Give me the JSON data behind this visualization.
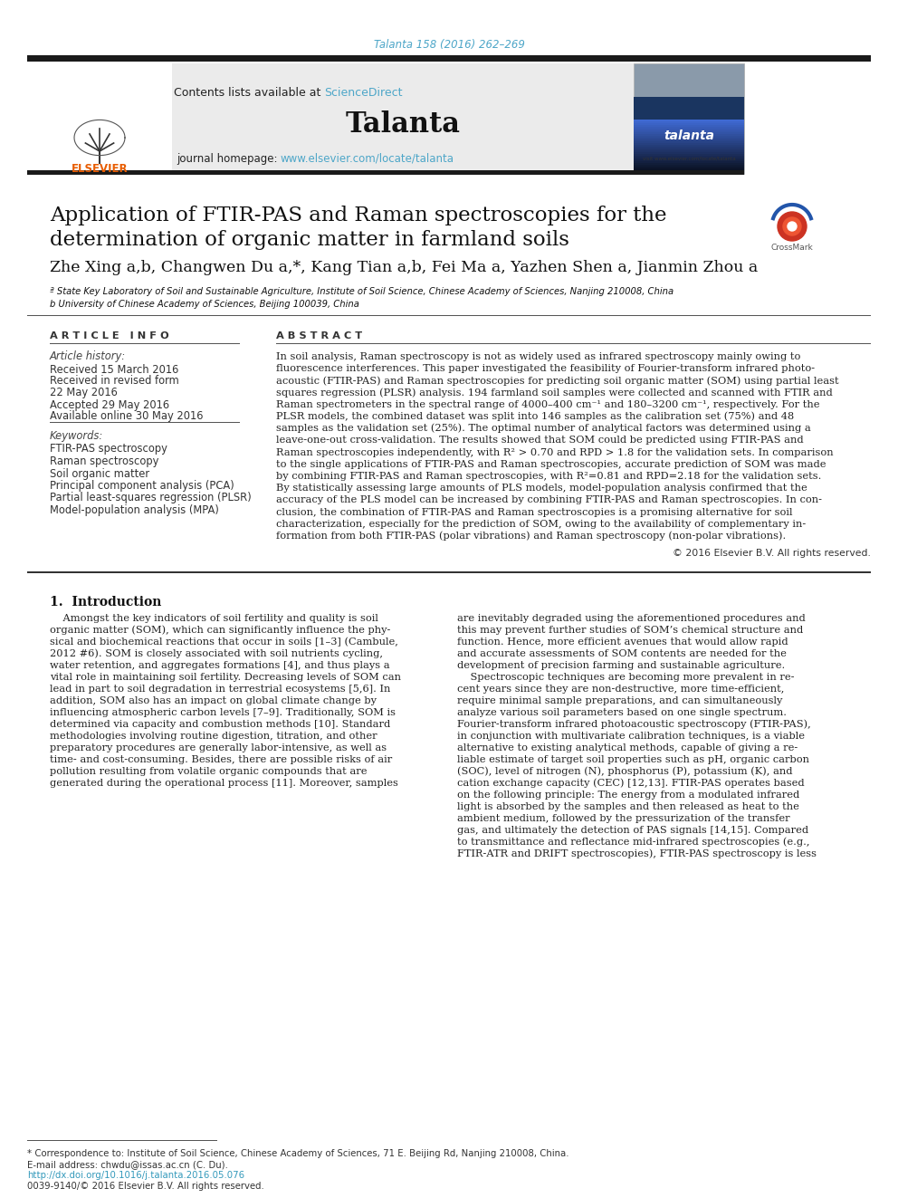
{
  "page_bg": "#ffffff",
  "top_citation": "Talanta 158 (2016) 262–269",
  "top_citation_color": "#4da6c8",
  "journal_header_bg": "#ebebeb",
  "contents_text": "Contents lists available at ",
  "sciencedirect_text": "ScienceDirect",
  "sciencedirect_color": "#4da6c8",
  "journal_name": "Talanta",
  "journal_homepage_text": "journal homepage: ",
  "journal_url": "www.elsevier.com/locate/talanta",
  "journal_url_color": "#4da6c8",
  "title_line1": "Application of FTIR-PAS and Raman spectroscopies for the",
  "title_line2": "determination of organic matter in farmland soils",
  "author_text": "Zhe Xing a,b, Changwen Du a,*, Kang Tian a,b, Fei Ma a, Yazhen Shen a, Jianmin Zhou a",
  "affil1": "ª State Key Laboratory of Soil and Sustainable Agriculture, Institute of Soil Science, Chinese Academy of Sciences, Nanjing 210008, China",
  "affil2": "b University of Chinese Academy of Sciences, Beijing 100039, China",
  "article_info_header": "A R T I C L E   I N F O",
  "abstract_header": "A B S T R A C T",
  "article_history_label": "Article history:",
  "received": "Received 15 March 2016",
  "received_revised": "Received in revised form",
  "revised_date": "22 May 2016",
  "accepted": "Accepted 29 May 2016",
  "available": "Available online 30 May 2016",
  "keywords_label": "Keywords:",
  "keywords": [
    "FTIR-PAS spectroscopy",
    "Raman spectroscopy",
    "Soil organic matter",
    "Principal component analysis (PCA)",
    "Partial least-squares regression (PLSR)",
    "Model-population analysis (MPA)"
  ],
  "abstract_lines": [
    "In soil analysis, Raman spectroscopy is not as widely used as infrared spectroscopy mainly owing to",
    "fluorescence interferences. This paper investigated the feasibility of Fourier-transform infrared photo-",
    "acoustic (FTIR-PAS) and Raman spectroscopies for predicting soil organic matter (SOM) using partial least",
    "squares regression (PLSR) analysis. 194 farmland soil samples were collected and scanned with FTIR and",
    "Raman spectrometers in the spectral range of 4000–400 cm⁻¹ and 180–3200 cm⁻¹, respectively. For the",
    "PLSR models, the combined dataset was split into 146 samples as the calibration set (75%) and 48",
    "samples as the validation set (25%). The optimal number of analytical factors was determined using a",
    "leave-one-out cross-validation. The results showed that SOM could be predicted using FTIR-PAS and",
    "Raman spectroscopies independently, with R² > 0.70 and RPD > 1.8 for the validation sets. In comparison",
    "to the single applications of FTIR-PAS and Raman spectroscopies, accurate prediction of SOM was made",
    "by combining FTIR-PAS and Raman spectroscopies, with R²=0.81 and RPD=2.18 for the validation sets.",
    "By statistically assessing large amounts of PLS models, model-population analysis confirmed that the",
    "accuracy of the PLS model can be increased by combining FTIR-PAS and Raman spectroscopies. In con-",
    "clusion, the combination of FTIR-PAS and Raman spectroscopies is a promising alternative for soil",
    "characterization, especially for the prediction of SOM, owing to the availability of complementary in-",
    "formation from both FTIR-PAS (polar vibrations) and Raman spectroscopy (non-polar vibrations)."
  ],
  "copyright": "© 2016 Elsevier B.V. All rights reserved.",
  "intro_header": "1.  Introduction",
  "intro_col1_lines": [
    "    Amongst the key indicators of soil fertility and quality is soil",
    "organic matter (SOM), which can significantly influence the phy-",
    "sical and biochemical reactions that occur in soils [1–3] (Cambule,",
    "2012 #6). SOM is closely associated with soil nutrients cycling,",
    "water retention, and aggregates formations [4], and thus plays a",
    "vital role in maintaining soil fertility. Decreasing levels of SOM can",
    "lead in part to soil degradation in terrestrial ecosystems [5,6]. In",
    "addition, SOM also has an impact on global climate change by",
    "influencing atmospheric carbon levels [7–9]. Traditionally, SOM is",
    "determined via capacity and combustion methods [10]. Standard",
    "methodologies involving routine digestion, titration, and other",
    "preparatory procedures are generally labor-intensive, as well as",
    "time- and cost-consuming. Besides, there are possible risks of air",
    "pollution resulting from volatile organic compounds that are",
    "generated during the operational process [11]. Moreover, samples"
  ],
  "intro_col2_lines": [
    "are inevitably degraded using the aforementioned procedures and",
    "this may prevent further studies of SOM’s chemical structure and",
    "function. Hence, more efficient avenues that would allow rapid",
    "and accurate assessments of SOM contents are needed for the",
    "development of precision farming and sustainable agriculture.",
    "    Spectroscopic techniques are becoming more prevalent in re-",
    "cent years since they are non-destructive, more time-efficient,",
    "require minimal sample preparations, and can simultaneously",
    "analyze various soil parameters based on one single spectrum.",
    "Fourier-transform infrared photoacoustic spectroscopy (FTIR-PAS),",
    "in conjunction with multivariate calibration techniques, is a viable",
    "alternative to existing analytical methods, capable of giving a re-",
    "liable estimate of target soil properties such as pH, organic carbon",
    "(SOC), level of nitrogen (N), phosphorus (P), potassium (K), and",
    "cation exchange capacity (CEC) [12,13]. FTIR-PAS operates based",
    "on the following principle: The energy from a modulated infrared",
    "light is absorbed by the samples and then released as heat to the",
    "ambient medium, followed by the pressurization of the transfer",
    "gas, and ultimately the detection of PAS signals [14,15]. Compared",
    "to transmittance and reflectance mid-infrared spectroscopies (e.g.,",
    "FTIR-ATR and DRIFT spectroscopies), FTIR-PAS spectroscopy is less"
  ],
  "footer_correspondence": "* Correspondence to: Institute of Soil Science, Chinese Academy of Sciences, 71 E. Beijing Rd, Nanjing 210008, China.",
  "footer_email": "E-mail address: chwdu@issas.ac.cn (C. Du).",
  "footer_doi": "http://dx.doi.org/10.1016/j.talanta.2016.05.076",
  "footer_issn": "0039-9140/© 2016 Elsevier B.V. All rights reserved.",
  "dark_bar_color": "#1a1a1a",
  "separator_color": "#555555",
  "link_color": "#3399bb"
}
